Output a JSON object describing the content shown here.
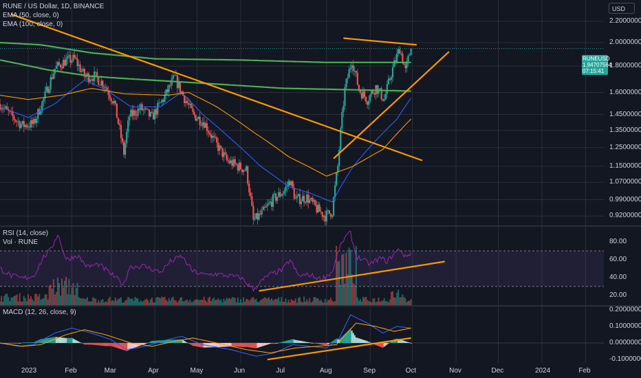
{
  "header": {
    "title": "RUNE / US Dollar, 1D, BINANCE",
    "ema50": "EMA (50, close, 0)",
    "ema100": "EMA (100, close, 0)"
  },
  "currency_button": "USD",
  "price_tag": {
    "symbol": "RUNEUSD",
    "price": "1.94707564",
    "countdown": "07:15:41"
  },
  "rsi_panel": {
    "label": "RSI (14, close)",
    "vol_label": "Vol · RUNE"
  },
  "macd_panel": {
    "label": "MACD (12, 26, close, 9)"
  },
  "colors": {
    "background": "#131722",
    "up": "#26a69a",
    "down": "#ef5350",
    "ema50": "#2962ff",
    "ema100": "#ff9800",
    "green_ma": "#4caf50",
    "trendline": "#ff9800",
    "rsi": "#9c27b0",
    "grid": "#2a2e39"
  },
  "chart_data": [
    {
      "type": "candlestick",
      "title": "RUNE / US Dollar, 1D, BINANCE",
      "scale": "log",
      "y_ticks": [
        "2.20000000",
        "2.00000000",
        "1.80000000",
        "1.60000000",
        "1.45000000",
        "1.35000000",
        "1.25000000",
        "1.15000000",
        "1.07000000",
        "0.99000000",
        "0.92000000"
      ],
      "y_tick_values": [
        2.2,
        2.0,
        1.8,
        1.6,
        1.45,
        1.35,
        1.25,
        1.15,
        1.07,
        0.99,
        0.92
      ],
      "ylim": [
        0.885,
        2.42
      ],
      "x_ticks": [
        "2023",
        "Feb",
        "Mar",
        "Apr",
        "May",
        "Jun",
        "Jul",
        "Aug",
        "Sep",
        "Oct",
        "Nov",
        "Dec",
        "2024",
        "Feb"
      ],
      "x_tick_dates": [
        "2023-01-01",
        "2023-02-01",
        "2023-03-01",
        "2023-04-01",
        "2023-05-01",
        "2023-06-01",
        "2023-07-01",
        "2023-08-01",
        "2023-09-01",
        "2023-10-01",
        "2023-11-01",
        "2023-12-01",
        "2024-01-01",
        "2024-02-01"
      ],
      "xlim": [
        "2022-12-12",
        "2024-02-14"
      ],
      "last_price": 1.94707564,
      "price_anchors": [
        [
          "2022-12-12",
          1.52
        ],
        [
          "2022-12-20",
          1.44
        ],
        [
          "2022-12-28",
          1.38
        ],
        [
          "2023-01-05",
          1.39
        ],
        [
          "2023-01-12",
          1.55
        ],
        [
          "2023-01-20",
          1.78
        ],
        [
          "2023-01-27",
          1.84
        ],
        [
          "2023-02-03",
          1.86
        ],
        [
          "2023-02-10",
          1.72
        ],
        [
          "2023-02-17",
          1.72
        ],
        [
          "2023-02-24",
          1.66
        ],
        [
          "2023-03-03",
          1.53
        ],
        [
          "2023-03-10",
          1.22
        ],
        [
          "2023-03-14",
          1.44
        ],
        [
          "2023-03-22",
          1.49
        ],
        [
          "2023-03-30",
          1.43
        ],
        [
          "2023-04-08",
          1.57
        ],
        [
          "2023-04-15",
          1.71
        ],
        [
          "2023-04-21",
          1.58
        ],
        [
          "2023-04-28",
          1.45
        ],
        [
          "2023-05-06",
          1.4
        ],
        [
          "2023-05-13",
          1.29
        ],
        [
          "2023-05-22",
          1.18
        ],
        [
          "2023-05-30",
          1.15
        ],
        [
          "2023-06-05",
          1.13
        ],
        [
          "2023-06-10",
          0.9
        ],
        [
          "2023-06-16",
          0.93
        ],
        [
          "2023-06-24",
          0.99
        ],
        [
          "2023-07-02",
          1.03
        ],
        [
          "2023-07-06",
          1.08
        ],
        [
          "2023-07-10",
          0.99
        ],
        [
          "2023-07-18",
          1.0
        ],
        [
          "2023-07-25",
          0.95
        ],
        [
          "2023-07-31",
          0.92
        ],
        [
          "2023-08-05",
          0.94
        ],
        [
          "2023-08-09",
          1.15
        ],
        [
          "2023-08-14",
          1.62
        ],
        [
          "2023-08-19",
          1.85
        ],
        [
          "2023-08-24",
          1.62
        ],
        [
          "2023-08-30",
          1.55
        ],
        [
          "2023-09-05",
          1.64
        ],
        [
          "2023-09-11",
          1.55
        ],
        [
          "2023-09-17",
          1.78
        ],
        [
          "2023-09-22",
          1.95
        ],
        [
          "2023-09-26",
          1.76
        ],
        [
          "2023-09-30",
          1.95
        ]
      ],
      "moving_averages": [
        {
          "name": "EMA (50, close, 0)",
          "color": "#2962ff",
          "points": [
            [
              "2022-12-12",
              1.5
            ],
            [
              "2023-01-01",
              1.43
            ],
            [
              "2023-01-20",
              1.52
            ],
            [
              "2023-02-10",
              1.69
            ],
            [
              "2023-02-25",
              1.62
            ],
            [
              "2023-03-15",
              1.5
            ],
            [
              "2023-04-05",
              1.5
            ],
            [
              "2023-04-20",
              1.6
            ],
            [
              "2023-05-05",
              1.45
            ],
            [
              "2023-05-25",
              1.3
            ],
            [
              "2023-06-15",
              1.15
            ],
            [
              "2023-07-05",
              1.05
            ],
            [
              "2023-07-20",
              1.02
            ],
            [
              "2023-08-05",
              0.98
            ],
            [
              "2023-08-20",
              1.15
            ],
            [
              "2023-09-05",
              1.29
            ],
            [
              "2023-09-20",
              1.42
            ],
            [
              "2023-09-30",
              1.56
            ]
          ]
        },
        {
          "name": "EMA (100, close, 0)",
          "color": "#ff9800",
          "points": [
            [
              "2022-12-12",
              1.58
            ],
            [
              "2023-01-01",
              1.55
            ],
            [
              "2023-01-25",
              1.58
            ],
            [
              "2023-02-15",
              1.63
            ],
            [
              "2023-03-10",
              1.59
            ],
            [
              "2023-04-10",
              1.58
            ],
            [
              "2023-04-25",
              1.6
            ],
            [
              "2023-05-15",
              1.5
            ],
            [
              "2023-06-10",
              1.34
            ],
            [
              "2023-07-05",
              1.2
            ],
            [
              "2023-08-01",
              1.1
            ],
            [
              "2023-08-20",
              1.15
            ],
            [
              "2023-09-10",
              1.24
            ],
            [
              "2023-09-30",
              1.42
            ]
          ]
        },
        {
          "name": "green MA (upper)",
          "color": "#4caf50",
          "points": [
            [
              "2022-12-12",
              2.0
            ],
            [
              "2023-01-10",
              1.98
            ],
            [
              "2023-02-15",
              1.91
            ],
            [
              "2023-04-01",
              1.86
            ],
            [
              "2023-06-01",
              1.85
            ],
            [
              "2023-08-01",
              1.83
            ],
            [
              "2023-09-30",
              1.83
            ]
          ]
        },
        {
          "name": "green MA (lower)",
          "color": "#4caf50",
          "points": [
            [
              "2022-12-12",
              1.85
            ],
            [
              "2023-01-15",
              1.77
            ],
            [
              "2023-02-15",
              1.72
            ],
            [
              "2023-03-15",
              1.7
            ],
            [
              "2023-05-01",
              1.67
            ],
            [
              "2023-07-01",
              1.63
            ],
            [
              "2023-09-30",
              1.61
            ]
          ]
        }
      ],
      "trendlines": [
        {
          "from": [
            "2022-12-20",
            2.27
          ],
          "to": [
            "2023-10-08",
            1.18
          ]
        },
        {
          "from": [
            "2023-08-13",
            2.04
          ],
          "to": [
            "2023-10-04",
            1.98
          ]
        },
        {
          "from": [
            "2023-08-06",
            1.19
          ],
          "to": [
            "2023-10-27",
            1.92
          ]
        }
      ]
    },
    {
      "type": "line",
      "title": "RSI (14, close)",
      "subtitle": "Vol · RUNE",
      "y_ticks": [
        "80.00",
        "60.00",
        "40.00",
        "20.00"
      ],
      "y_tick_values": [
        80,
        60,
        40,
        20
      ],
      "ylim": [
        9,
        97
      ],
      "bands": [
        30,
        70
      ],
      "xlim": [
        "2022-12-12",
        "2024-02-14"
      ],
      "rsi_anchors": [
        [
          "2022-12-12",
          50
        ],
        [
          "2022-12-20",
          42
        ],
        [
          "2022-12-28",
          39
        ],
        [
          "2023-01-05",
          42
        ],
        [
          "2023-01-12",
          63
        ],
        [
          "2023-01-17",
          71
        ],
        [
          "2023-01-22",
          89
        ],
        [
          "2023-01-28",
          60
        ],
        [
          "2023-02-05",
          65
        ],
        [
          "2023-02-12",
          52
        ],
        [
          "2023-02-20",
          55
        ],
        [
          "2023-03-01",
          44
        ],
        [
          "2023-03-10",
          32
        ],
        [
          "2023-03-14",
          52
        ],
        [
          "2023-03-24",
          53
        ],
        [
          "2023-04-05",
          46
        ],
        [
          "2023-04-12",
          58
        ],
        [
          "2023-04-20",
          64
        ],
        [
          "2023-04-28",
          47
        ],
        [
          "2023-05-06",
          43
        ],
        [
          "2023-05-14",
          44
        ],
        [
          "2023-05-23",
          42
        ],
        [
          "2023-06-01",
          40
        ],
        [
          "2023-06-10",
          27
        ],
        [
          "2023-06-20",
          42
        ],
        [
          "2023-07-01",
          49
        ],
        [
          "2023-07-06",
          60
        ],
        [
          "2023-07-12",
          42
        ],
        [
          "2023-07-20",
          43
        ],
        [
          "2023-07-28",
          38
        ],
        [
          "2023-08-05",
          46
        ],
        [
          "2023-08-10",
          72
        ],
        [
          "2023-08-14",
          85
        ],
        [
          "2023-08-18",
          90
        ],
        [
          "2023-08-22",
          64
        ],
        [
          "2023-09-01",
          55
        ],
        [
          "2023-09-08",
          62
        ],
        [
          "2023-09-13",
          58
        ],
        [
          "2023-09-18",
          67
        ],
        [
          "2023-09-22",
          72
        ],
        [
          "2023-09-26",
          63
        ],
        [
          "2023-09-30",
          68
        ]
      ],
      "volume_bars": [
        {
          "range": [
            "2022-12-12",
            "2023-01-15"
          ],
          "level": "low"
        },
        {
          "range": [
            "2023-01-15",
            "2023-02-05"
          ],
          "level": "high"
        },
        {
          "range": [
            "2023-08-08",
            "2023-08-22"
          ],
          "level": "highest"
        },
        {
          "range": [
            "2023-09-15",
            "2023-09-25"
          ],
          "level": "medium"
        }
      ],
      "trendlines": [
        {
          "from": [
            "2023-06-14",
            25
          ],
          "to": [
            "2023-10-24",
            58
          ]
        }
      ]
    },
    {
      "type": "histogram",
      "title": "MACD (12, 26, close, 9)",
      "y_ticks": [
        "0.20000000",
        "0.10000000",
        "0.00000000",
        "-0.10000000"
      ],
      "y_tick_values": [
        0.2,
        0.1,
        0.0,
        -0.1
      ],
      "ylim": [
        -0.12,
        0.22
      ],
      "xlim": [
        "2022-12-12",
        "2024-02-14"
      ],
      "macd_anchors": [
        [
          "2022-12-12",
          0.0
        ],
        [
          "2022-12-25",
          -0.02
        ],
        [
          "2023-01-05",
          -0.01
        ],
        [
          "2023-01-20",
          0.06
        ],
        [
          "2023-02-01",
          0.09
        ],
        [
          "2023-02-15",
          0.06
        ],
        [
          "2023-03-01",
          0.02
        ],
        [
          "2023-03-12",
          -0.04
        ],
        [
          "2023-03-25",
          -0.02
        ],
        [
          "2023-04-10",
          0.02
        ],
        [
          "2023-04-20",
          0.04
        ],
        [
          "2023-05-05",
          -0.01
        ],
        [
          "2023-05-25",
          -0.04
        ],
        [
          "2023-06-12",
          -0.08
        ],
        [
          "2023-06-25",
          -0.06
        ],
        [
          "2023-07-08",
          -0.01
        ],
        [
          "2023-07-20",
          -0.02
        ],
        [
          "2023-08-01",
          -0.03
        ],
        [
          "2023-08-10",
          0.03
        ],
        [
          "2023-08-18",
          0.17
        ],
        [
          "2023-08-30",
          0.12
        ],
        [
          "2023-09-10",
          0.06
        ],
        [
          "2023-09-20",
          0.1
        ],
        [
          "2023-09-30",
          0.09
        ]
      ],
      "signal_anchors": [
        [
          "2022-12-12",
          0.0
        ],
        [
          "2022-12-28",
          -0.02
        ],
        [
          "2023-01-10",
          -0.01
        ],
        [
          "2023-01-28",
          0.05
        ],
        [
          "2023-02-10",
          0.08
        ],
        [
          "2023-02-25",
          0.05
        ],
        [
          "2023-03-15",
          0.0
        ],
        [
          "2023-03-30",
          -0.02
        ],
        [
          "2023-04-15",
          0.01
        ],
        [
          "2023-04-28",
          0.03
        ],
        [
          "2023-05-15",
          0.0
        ],
        [
          "2023-06-05",
          -0.04
        ],
        [
          "2023-06-22",
          -0.06
        ],
        [
          "2023-07-10",
          -0.03
        ],
        [
          "2023-07-25",
          -0.02
        ],
        [
          "2023-08-08",
          -0.01
        ],
        [
          "2023-08-22",
          0.12
        ],
        [
          "2023-09-05",
          0.1
        ],
        [
          "2023-09-18",
          0.07
        ],
        [
          "2023-09-30",
          0.09
        ]
      ],
      "trendlines": [
        {
          "from": [
            "2023-06-20",
            -0.1
          ],
          "to": [
            "2023-09-30",
            0.03
          ]
        }
      ]
    }
  ]
}
